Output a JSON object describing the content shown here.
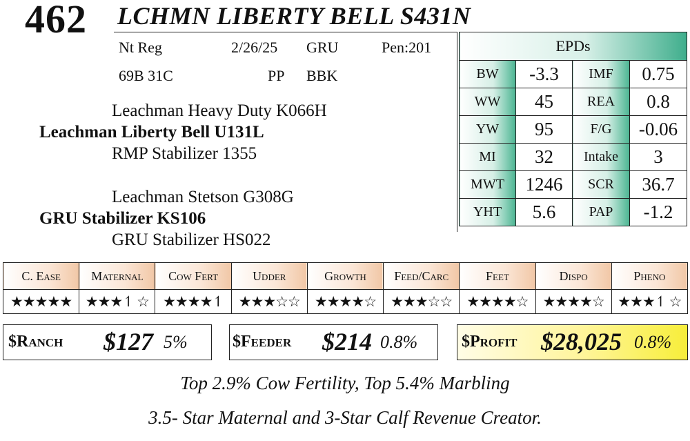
{
  "header": {
    "lot": "462",
    "name": "LCHMN LIBERTY BELL S431N"
  },
  "info": {
    "reg": "Nt Reg",
    "date": "2/26/25",
    "breeder": "GRU",
    "pen": "Pen:201",
    "tattoo": "69B 31C",
    "polled": "PP",
    "color": "BBK"
  },
  "pedigree": {
    "sire_sire": "Leachman Heavy Duty K066H",
    "sire": "Leachman Liberty Bell U131L",
    "sire_dam_sire": "RMP Stabilizer 1355",
    "dam_sire_sire": "Leachman Stetson G308G",
    "dam_sire": "GRU Stabilizer KS106",
    "dam_dam_sire": "GRU Stabilizer HS022"
  },
  "epds": {
    "title": "EPDs",
    "rows": [
      {
        "l1": "BW",
        "v1": "-3.3",
        "l2": "IMF",
        "v2": "0.75"
      },
      {
        "l1": "WW",
        "v1": "45",
        "l2": "REA",
        "v2": "0.8"
      },
      {
        "l1": "YW",
        "v1": "95",
        "l2": "F/G",
        "v2": "-0.06"
      },
      {
        "l1": "MI",
        "v1": "32",
        "l2": "Intake",
        "v2": "3"
      },
      {
        "l1": "MWT",
        "v1": "1246",
        "l2": "SCR",
        "v2": "36.7"
      },
      {
        "l1": "YHT",
        "v1": "5.6",
        "l2": "PAP",
        "v2": "-1.2"
      }
    ]
  },
  "ratings": {
    "categories": [
      "C. Ease",
      "Maternal",
      "Cow Fert",
      "Udder",
      "Growth",
      "Feed/Carc",
      "Feet",
      "Dispo",
      "Pheno"
    ],
    "stars": [
      5,
      3.5,
      4.5,
      3,
      4,
      3,
      4,
      4,
      3.5
    ],
    "star_text": [
      "★★★★★",
      "★★★↿ ☆",
      "★★★★↿",
      "★★★☆☆",
      "★★★★☆",
      "★★★☆☆",
      "★★★★☆",
      "★★★★☆",
      "★★★↿ ☆"
    ]
  },
  "indexes": {
    "ranch_label": "$Ranch",
    "ranch_value": "$127",
    "ranch_pct": "5%",
    "feeder_label": "$Feeder",
    "feeder_value": "$214",
    "feeder_pct": "0.8%",
    "profit_label": "$Profit",
    "profit_value": "$28,025",
    "profit_pct": "0.8%"
  },
  "notes": {
    "line1": "Top 2.9% Cow Fertility, Top 5.4% Marbling",
    "line2": "3.5- Star Maternal and 3-Star Calf Revenue Creator."
  }
}
